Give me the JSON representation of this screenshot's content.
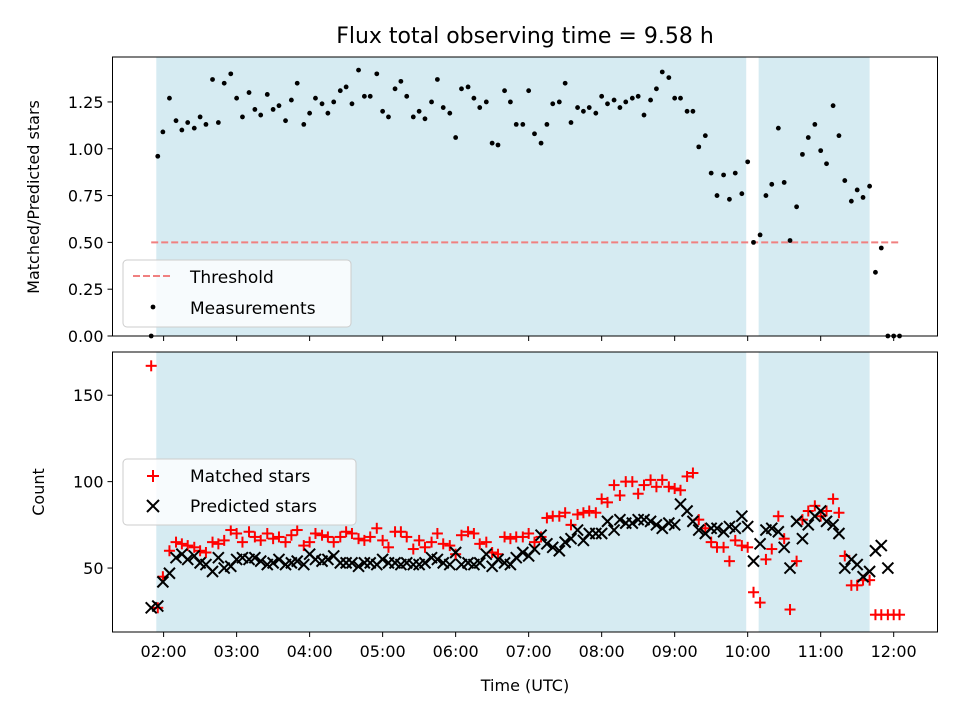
{
  "colors": {
    "shade": "#add8e6",
    "threshold": "#f08080",
    "matched": "#ff0000",
    "predicted": "#000000",
    "measure": "#000000"
  },
  "chart_data": [
    {
      "type": "scatter",
      "title": "Flux total observing time = 9.58 h",
      "xlabel": "",
      "ylabel": "Matched/Predicted stars",
      "xlim": [
        1.3,
        12.6
      ],
      "ylim": [
        0,
        1.49
      ],
      "yticks": [
        0.0,
        0.25,
        0.5,
        0.75,
        1.0,
        1.25
      ],
      "ytick_labels": [
        "0.00",
        "0.25",
        "0.50",
        "0.75",
        "1.00",
        "1.25"
      ],
      "shaded_intervals": [
        [
          1.9,
          9.98
        ],
        [
          10.15,
          11.67
        ]
      ],
      "threshold": {
        "name": "Threshold",
        "value": 0.5,
        "x": [
          1.83,
          12.08
        ]
      },
      "legend": {
        "location": "lower left",
        "entries": [
          "Threshold",
          "Measurements"
        ]
      },
      "series": [
        {
          "name": "Measurements",
          "x": [
            1.83,
            1.92,
            1.99,
            2.08,
            2.17,
            2.25,
            2.33,
            2.42,
            2.5,
            2.58,
            2.67,
            2.75,
            2.83,
            2.92,
            3.0,
            3.08,
            3.17,
            3.25,
            3.33,
            3.42,
            3.5,
            3.58,
            3.67,
            3.75,
            3.83,
            3.92,
            4.0,
            4.08,
            4.17,
            4.25,
            4.33,
            4.42,
            4.5,
            4.58,
            4.67,
            4.75,
            4.83,
            4.92,
            5.0,
            5.08,
            5.17,
            5.25,
            5.33,
            5.42,
            5.5,
            5.58,
            5.67,
            5.75,
            5.83,
            5.92,
            6.0,
            6.08,
            6.17,
            6.25,
            6.33,
            6.42,
            6.5,
            6.58,
            6.67,
            6.75,
            6.83,
            6.92,
            7.0,
            7.08,
            7.17,
            7.25,
            7.33,
            7.42,
            7.5,
            7.58,
            7.67,
            7.75,
            7.83,
            7.92,
            8.0,
            8.08,
            8.17,
            8.25,
            8.33,
            8.42,
            8.5,
            8.58,
            8.67,
            8.75,
            8.83,
            8.92,
            9.0,
            9.08,
            9.17,
            9.25,
            9.33,
            9.42,
            9.5,
            9.58,
            9.67,
            9.75,
            9.83,
            9.92,
            10.0,
            10.08,
            10.17,
            10.25,
            10.33,
            10.42,
            10.5,
            10.58,
            10.67,
            10.75,
            10.83,
            10.92,
            11.0,
            11.08,
            11.17,
            11.25,
            11.33,
            11.42,
            11.5,
            11.58,
            11.67,
            11.75,
            11.83,
            11.92,
            12.0,
            12.08
          ],
          "y": [
            0.0,
            0.96,
            1.09,
            1.27,
            1.15,
            1.1,
            1.14,
            1.11,
            1.17,
            1.13,
            1.37,
            1.14,
            1.35,
            1.4,
            1.27,
            1.17,
            1.3,
            1.21,
            1.18,
            1.29,
            1.21,
            1.23,
            1.15,
            1.26,
            1.35,
            1.13,
            1.19,
            1.27,
            1.24,
            1.19,
            1.25,
            1.31,
            1.33,
            1.24,
            1.42,
            1.28,
            1.28,
            1.4,
            1.2,
            1.17,
            1.32,
            1.36,
            1.28,
            1.17,
            1.2,
            1.16,
            1.25,
            1.37,
            1.22,
            1.19,
            1.06,
            1.32,
            1.33,
            1.27,
            1.22,
            1.25,
            1.03,
            1.02,
            1.31,
            1.25,
            1.13,
            1.13,
            1.31,
            1.08,
            1.03,
            1.13,
            1.24,
            1.25,
            1.35,
            1.14,
            1.22,
            1.2,
            1.22,
            1.19,
            1.28,
            1.24,
            1.26,
            1.22,
            1.25,
            1.27,
            1.28,
            1.18,
            1.26,
            1.32,
            1.41,
            1.38,
            1.27,
            1.27,
            1.2,
            1.2,
            1.01,
            1.07,
            0.87,
            0.75,
            0.86,
            0.73,
            0.87,
            0.76,
            0.93,
            0.5,
            0.54,
            0.75,
            0.81,
            1.11,
            0.82,
            0.51,
            0.69,
            0.97,
            1.06,
            1.13,
            0.99,
            0.92,
            1.23,
            1.07,
            0.83,
            0.72,
            0.78,
            0.74,
            0.8,
            0.34,
            0.47,
            0.0,
            0.0,
            0.0
          ]
        }
      ]
    },
    {
      "type": "scatter",
      "title": "",
      "xlabel": "Time (UTC)",
      "ylabel": "Count",
      "xlim": [
        1.3,
        12.6
      ],
      "ylim": [
        13,
        175
      ],
      "xticks": [
        2,
        3,
        4,
        5,
        6,
        7,
        8,
        9,
        10,
        11,
        12
      ],
      "xtick_labels": [
        "02:00",
        "03:00",
        "04:00",
        "05:00",
        "06:00",
        "07:00",
        "08:00",
        "09:00",
        "10:00",
        "11:00",
        "12:00"
      ],
      "yticks": [
        50,
        100,
        150
      ],
      "ytick_labels": [
        "50",
        "100",
        "150"
      ],
      "shaded_intervals": [
        [
          1.9,
          9.98
        ],
        [
          10.15,
          11.67
        ]
      ],
      "legend": {
        "location": "center left",
        "entries": [
          "Matched stars",
          "Predicted stars"
        ]
      },
      "series": [
        {
          "name": "Matched stars",
          "marker": "+",
          "x": [
            1.83,
            1.92,
            1.99,
            2.08,
            2.17,
            2.25,
            2.33,
            2.42,
            2.5,
            2.58,
            2.67,
            2.75,
            2.83,
            2.92,
            3.0,
            3.08,
            3.17,
            3.25,
            3.33,
            3.42,
            3.5,
            3.58,
            3.67,
            3.75,
            3.83,
            3.92,
            4.0,
            4.08,
            4.17,
            4.25,
            4.33,
            4.42,
            4.5,
            4.58,
            4.67,
            4.75,
            4.83,
            4.92,
            5.0,
            5.08,
            5.17,
            5.25,
            5.33,
            5.42,
            5.5,
            5.58,
            5.67,
            5.75,
            5.83,
            5.92,
            6.0,
            6.08,
            6.17,
            6.25,
            6.33,
            6.42,
            6.5,
            6.58,
            6.67,
            6.75,
            6.83,
            6.92,
            7.0,
            7.08,
            7.17,
            7.25,
            7.33,
            7.42,
            7.5,
            7.58,
            7.67,
            7.75,
            7.83,
            7.92,
            8.0,
            8.08,
            8.17,
            8.25,
            8.33,
            8.42,
            8.5,
            8.58,
            8.67,
            8.75,
            8.83,
            8.92,
            9.0,
            9.08,
            9.17,
            9.25,
            9.33,
            9.42,
            9.5,
            9.58,
            9.67,
            9.75,
            9.83,
            9.92,
            10.0,
            10.08,
            10.17,
            10.25,
            10.33,
            10.42,
            10.5,
            10.58,
            10.67,
            10.75,
            10.83,
            10.92,
            11.0,
            11.08,
            11.17,
            11.25,
            11.33,
            11.42,
            11.5,
            11.58,
            11.67,
            11.75,
            11.83,
            11.92,
            12.0,
            12.08
          ],
          "y": [
            167,
            27,
            45,
            60,
            65,
            64,
            63,
            62,
            60,
            59,
            65,
            64,
            66,
            72,
            70,
            65,
            71,
            68,
            66,
            70,
            67,
            68,
            65,
            69,
            72,
            63,
            65,
            70,
            69,
            68,
            65,
            68,
            71,
            70,
            67,
            66,
            68,
            73,
            66,
            62,
            71,
            71,
            68,
            61,
            66,
            62,
            65,
            70,
            64,
            63,
            58,
            69,
            71,
            70,
            64,
            65,
            59,
            58,
            68,
            67,
            68,
            68,
            70,
            65,
            68,
            79,
            80,
            80,
            82,
            75,
            81,
            82,
            83,
            82,
            90,
            88,
            98,
            92,
            100,
            100,
            93,
            98,
            101,
            97,
            101,
            97,
            96,
            95,
            103,
            105,
            78,
            73,
            65,
            62,
            62,
            54,
            66,
            63,
            62,
            36,
            30,
            55,
            61,
            80,
            67,
            26,
            54,
            78,
            83,
            86,
            80,
            83,
            90,
            82,
            57,
            40,
            40,
            43,
            43,
            23,
            23,
            23,
            23,
            23
          ]
        },
        {
          "name": "Predicted stars",
          "marker": "x",
          "x": [
            1.83,
            1.92,
            1.99,
            2.08,
            2.17,
            2.25,
            2.33,
            2.42,
            2.5,
            2.58,
            2.67,
            2.75,
            2.83,
            2.92,
            3.0,
            3.08,
            3.17,
            3.25,
            3.33,
            3.42,
            3.5,
            3.58,
            3.67,
            3.75,
            3.83,
            3.92,
            4.0,
            4.08,
            4.17,
            4.25,
            4.33,
            4.42,
            4.5,
            4.58,
            4.67,
            4.75,
            4.83,
            4.92,
            5.0,
            5.08,
            5.17,
            5.25,
            5.33,
            5.42,
            5.5,
            5.58,
            5.67,
            5.75,
            5.83,
            5.92,
            6.0,
            6.08,
            6.17,
            6.25,
            6.33,
            6.42,
            6.5,
            6.58,
            6.67,
            6.75,
            6.83,
            6.92,
            7.0,
            7.08,
            7.17,
            7.25,
            7.33,
            7.42,
            7.5,
            7.58,
            7.67,
            7.75,
            7.83,
            7.92,
            8.0,
            8.08,
            8.17,
            8.25,
            8.33,
            8.42,
            8.5,
            8.58,
            8.67,
            8.75,
            8.83,
            8.92,
            9.0,
            9.08,
            9.17,
            9.25,
            9.33,
            9.42,
            9.5,
            9.58,
            9.67,
            9.75,
            9.83,
            9.92,
            10.0,
            10.08,
            10.17,
            10.25,
            10.33,
            10.42,
            10.5,
            10.58,
            10.67,
            10.75,
            10.83,
            10.92,
            11.0,
            11.08,
            11.17,
            11.25,
            11.33,
            11.42,
            11.5,
            11.58,
            11.67,
            11.75,
            11.83,
            11.92
          ],
          "y": [
            27,
            28,
            42,
            47,
            56,
            58,
            55,
            57,
            53,
            52,
            48,
            56,
            50,
            51,
            55,
            56,
            55,
            56,
            54,
            52,
            53,
            55,
            52,
            53,
            54,
            52,
            58,
            55,
            54,
            55,
            57,
            53,
            53,
            53,
            51,
            53,
            53,
            52,
            55,
            53,
            53,
            52,
            53,
            52,
            52,
            53,
            56,
            55,
            53,
            52,
            59,
            52,
            53,
            52,
            53,
            58,
            51,
            55,
            53,
            52,
            56,
            59,
            57,
            61,
            69,
            64,
            62,
            60,
            65,
            67,
            72,
            66,
            70,
            70,
            70,
            77,
            72,
            78,
            76,
            76,
            78,
            78,
            77,
            75,
            73,
            76,
            75,
            87,
            83,
            77,
            72,
            70,
            73,
            73,
            71,
            74,
            73,
            80,
            74,
            54,
            64,
            72,
            73,
            71,
            62,
            50,
            77,
            67,
            75,
            80,
            83,
            77,
            75,
            70,
            50,
            55,
            52,
            45,
            48,
            60,
            63,
            50
          ]
        }
      ]
    }
  ]
}
